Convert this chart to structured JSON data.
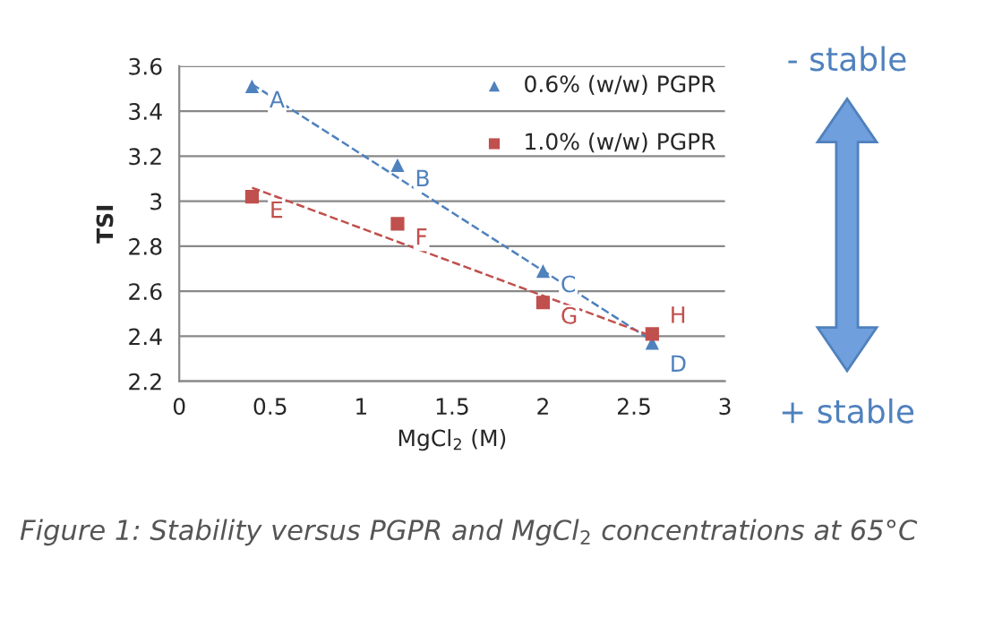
{
  "chart_data": {
    "type": "scatter",
    "xlabel": "MgCl$_{2}$ (M)",
    "ylabel": "TSI",
    "xlim": [
      0,
      3
    ],
    "xticks": [
      0,
      0.5,
      1,
      1.5,
      2,
      2.5,
      3
    ],
    "ylim": [
      2.2,
      3.6
    ],
    "yticks": [
      2.2,
      2.4,
      2.6,
      2.8,
      3,
      3.2,
      3.4,
      3.6
    ],
    "grid": "y",
    "legend": "top right",
    "series": [
      {
        "name": "0.6% (w/w) PGPR",
        "marker": "triangle",
        "color": "#4f81bd",
        "x": [
          0.4,
          1.2,
          2.0,
          2.6
        ],
        "values": [
          3.51,
          3.16,
          2.69,
          2.37
        ]
      },
      {
        "name": "1.0% (w/w) PGPR",
        "marker": "square",
        "color": "#c0504d",
        "x": [
          0.4,
          1.2,
          2.0,
          2.6
        ],
        "values": [
          3.02,
          2.9,
          2.55,
          2.41
        ]
      },
      {
        "type": "line",
        "line_style": "dashed",
        "color": "#4f81bd",
        "x": [
          0.4,
          2.6
        ],
        "values": [
          3.52,
          2.38
        ]
      },
      {
        "type": "line",
        "line_style": "dashed",
        "color": "#c0504d",
        "x": [
          0.4,
          2.6
        ],
        "values": [
          3.06,
          2.4
        ]
      }
    ],
    "annotations": [
      {
        "text": "A",
        "x": 0.4,
        "y": 3.51
      },
      {
        "text": "B",
        "x": 1.2,
        "y": 3.16
      },
      {
        "text": "C",
        "x": 2.0,
        "y": 2.69
      },
      {
        "text": "D",
        "x": 2.6,
        "y": 2.37
      },
      {
        "text": "E",
        "x": 0.4,
        "y": 3.02
      },
      {
        "text": "F",
        "x": 1.2,
        "y": 2.9
      },
      {
        "text": "G",
        "x": 2.0,
        "y": 2.55
      },
      {
        "text": "H",
        "x": 2.6,
        "y": 2.41
      },
      "- stable",
      "+ stable",
      "Figure 1: Stability versus PGPR and MgCl$_{2}$ concentrations at 65°C"
    ]
  }
}
